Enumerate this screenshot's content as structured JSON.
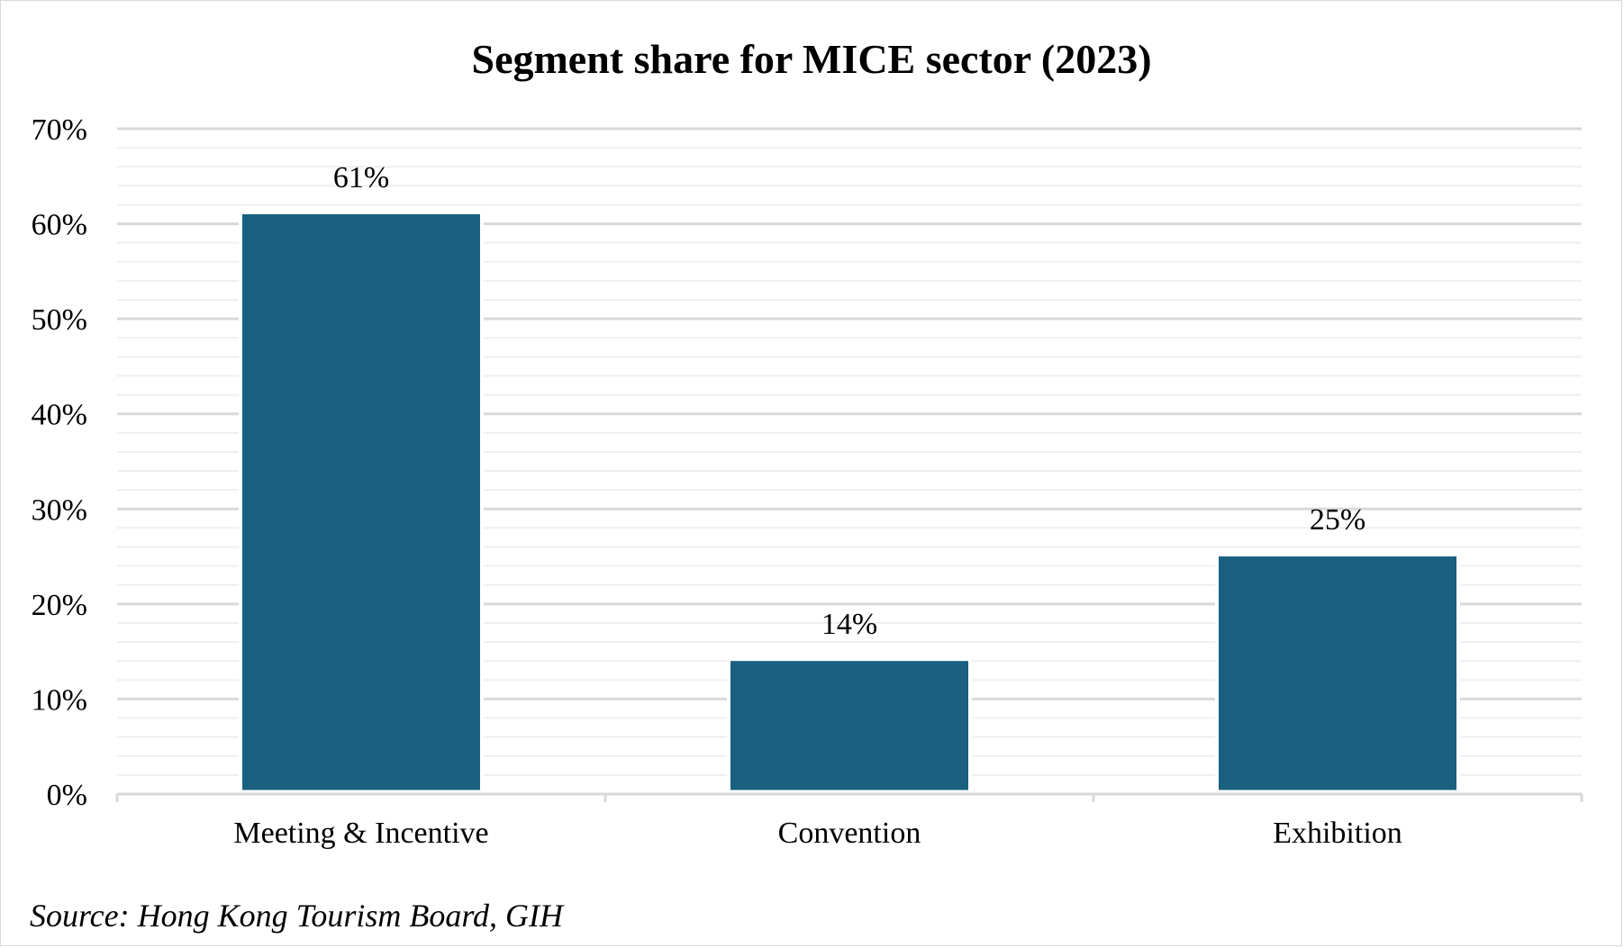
{
  "chart_data": {
    "type": "bar",
    "title": "Segment share for MICE sector (2023)",
    "categories": [
      "Meeting & Incentive",
      "Convention",
      "Exhibition"
    ],
    "values": [
      61,
      14,
      25
    ],
    "data_labels": [
      "61%",
      "14%",
      "25%"
    ],
    "ylim": [
      0,
      70
    ],
    "yticks": [
      0,
      10,
      20,
      30,
      40,
      50,
      60,
      70
    ],
    "ytick_labels": [
      "0%",
      "10%",
      "20%",
      "30%",
      "40%",
      "50%",
      "60%",
      "70%"
    ],
    "xlabel": "",
    "ylabel": "",
    "grid": true,
    "minor_grid": true,
    "legend": "none",
    "bar_color": "#1a6080",
    "grid_color": "#d9d9d9",
    "minor_grid_color": "#efefef"
  },
  "source": "Source: Hong Kong Tourism Board, GIH"
}
